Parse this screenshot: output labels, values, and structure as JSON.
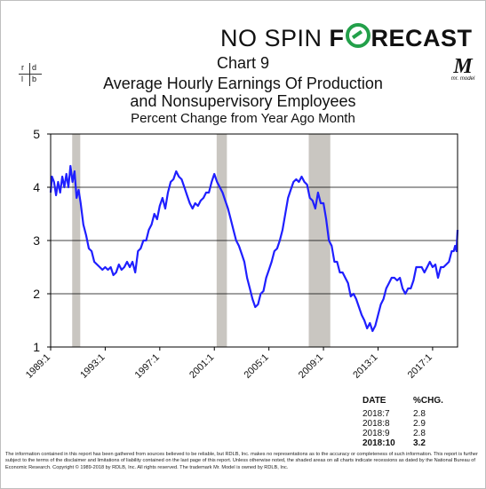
{
  "brand": {
    "light": "NO SPIN",
    "bold_pre": "F",
    "bold_post": "RECAST",
    "accent": "#23a04a"
  },
  "logos": {
    "rdlb": [
      "r",
      "d",
      "l",
      "b"
    ],
    "mr_model_mark": "M",
    "mr_model_text": "mr. model"
  },
  "chart_data": {
    "type": "line",
    "title_lines": [
      "Chart 9",
      "Average Hourly Earnings Of Production",
      "and Nonsupervisory Employees"
    ],
    "subtitle": "Percent Change from Year Ago Month",
    "xlabel": "",
    "ylabel": "",
    "x_range": [
      1989.0,
      2018.83
    ],
    "ylim": [
      1,
      5
    ],
    "yticks": [
      1,
      2,
      3,
      4,
      5
    ],
    "xticks": [
      {
        "x": 1989.0,
        "label": "1989:1"
      },
      {
        "x": 1993.0,
        "label": "1993:1"
      },
      {
        "x": 1997.0,
        "label": "1997:1"
      },
      {
        "x": 2001.0,
        "label": "2001:1"
      },
      {
        "x": 2005.0,
        "label": "2005:1"
      },
      {
        "x": 2009.0,
        "label": "2009:1"
      },
      {
        "x": 2013.0,
        "label": "2013:1"
      },
      {
        "x": 2017.0,
        "label": "2017:1"
      }
    ],
    "grid": "horizontal",
    "line_color": "#1f1fff",
    "recession_color": "#c9c6c1",
    "recessions": [
      [
        1990.58,
        1991.17
      ],
      [
        2001.17,
        2001.92
      ],
      [
        2007.92,
        2009.5
      ]
    ],
    "series": [
      {
        "values": [
          [
            1989.0,
            3.9
          ],
          [
            1989.1,
            4.2
          ],
          [
            1989.25,
            4.1
          ],
          [
            1989.4,
            3.85
          ],
          [
            1989.55,
            4.1
          ],
          [
            1989.7,
            3.9
          ],
          [
            1989.85,
            4.2
          ],
          [
            1990.0,
            4.0
          ],
          [
            1990.15,
            4.25
          ],
          [
            1990.3,
            4.0
          ],
          [
            1990.45,
            4.4
          ],
          [
            1990.6,
            4.1
          ],
          [
            1990.75,
            4.3
          ],
          [
            1990.9,
            3.8
          ],
          [
            1991.05,
            3.95
          ],
          [
            1991.2,
            3.7
          ],
          [
            1991.4,
            3.3
          ],
          [
            1991.6,
            3.1
          ],
          [
            1991.8,
            2.85
          ],
          [
            1992.0,
            2.8
          ],
          [
            1992.2,
            2.6
          ],
          [
            1992.4,
            2.55
          ],
          [
            1992.6,
            2.5
          ],
          [
            1992.8,
            2.45
          ],
          [
            1993.0,
            2.5
          ],
          [
            1993.2,
            2.45
          ],
          [
            1993.4,
            2.5
          ],
          [
            1993.6,
            2.35
          ],
          [
            1993.8,
            2.4
          ],
          [
            1994.0,
            2.55
          ],
          [
            1994.2,
            2.45
          ],
          [
            1994.4,
            2.5
          ],
          [
            1994.6,
            2.6
          ],
          [
            1994.8,
            2.5
          ],
          [
            1995.0,
            2.6
          ],
          [
            1995.2,
            2.4
          ],
          [
            1995.4,
            2.8
          ],
          [
            1995.6,
            2.85
          ],
          [
            1995.8,
            3.0
          ],
          [
            1996.0,
            3.0
          ],
          [
            1996.2,
            3.2
          ],
          [
            1996.4,
            3.3
          ],
          [
            1996.6,
            3.5
          ],
          [
            1996.8,
            3.4
          ],
          [
            1997.0,
            3.65
          ],
          [
            1997.2,
            3.8
          ],
          [
            1997.4,
            3.6
          ],
          [
            1997.6,
            3.9
          ],
          [
            1997.8,
            4.1
          ],
          [
            1998.0,
            4.15
          ],
          [
            1998.2,
            4.3
          ],
          [
            1998.4,
            4.2
          ],
          [
            1998.6,
            4.15
          ],
          [
            1998.8,
            4.0
          ],
          [
            1999.0,
            3.85
          ],
          [
            1999.2,
            3.7
          ],
          [
            1999.4,
            3.6
          ],
          [
            1999.6,
            3.7
          ],
          [
            1999.8,
            3.65
          ],
          [
            2000.0,
            3.75
          ],
          [
            2000.2,
            3.8
          ],
          [
            2000.4,
            3.9
          ],
          [
            2000.6,
            3.9
          ],
          [
            2000.8,
            4.1
          ],
          [
            2001.0,
            4.25
          ],
          [
            2001.2,
            4.1
          ],
          [
            2001.4,
            4.0
          ],
          [
            2001.6,
            3.9
          ],
          [
            2001.8,
            3.75
          ],
          [
            2002.0,
            3.6
          ],
          [
            2002.2,
            3.4
          ],
          [
            2002.4,
            3.2
          ],
          [
            2002.6,
            3.0
          ],
          [
            2002.8,
            2.9
          ],
          [
            2003.0,
            2.75
          ],
          [
            2003.2,
            2.6
          ],
          [
            2003.4,
            2.3
          ],
          [
            2003.6,
            2.1
          ],
          [
            2003.8,
            1.9
          ],
          [
            2004.0,
            1.75
          ],
          [
            2004.2,
            1.8
          ],
          [
            2004.4,
            2.0
          ],
          [
            2004.6,
            2.05
          ],
          [
            2004.8,
            2.3
          ],
          [
            2005.0,
            2.45
          ],
          [
            2005.2,
            2.6
          ],
          [
            2005.4,
            2.8
          ],
          [
            2005.6,
            2.85
          ],
          [
            2005.8,
            3.0
          ],
          [
            2006.0,
            3.2
          ],
          [
            2006.2,
            3.5
          ],
          [
            2006.4,
            3.8
          ],
          [
            2006.6,
            3.95
          ],
          [
            2006.8,
            4.1
          ],
          [
            2007.0,
            4.15
          ],
          [
            2007.2,
            4.1
          ],
          [
            2007.4,
            4.2
          ],
          [
            2007.6,
            4.1
          ],
          [
            2007.8,
            4.05
          ],
          [
            2008.0,
            3.8
          ],
          [
            2008.2,
            3.75
          ],
          [
            2008.4,
            3.6
          ],
          [
            2008.6,
            3.9
          ],
          [
            2008.8,
            3.7
          ],
          [
            2009.0,
            3.7
          ],
          [
            2009.2,
            3.4
          ],
          [
            2009.4,
            3.0
          ],
          [
            2009.6,
            2.9
          ],
          [
            2009.8,
            2.6
          ],
          [
            2010.0,
            2.6
          ],
          [
            2010.2,
            2.4
          ],
          [
            2010.4,
            2.4
          ],
          [
            2010.6,
            2.3
          ],
          [
            2010.8,
            2.2
          ],
          [
            2011.0,
            1.95
          ],
          [
            2011.2,
            2.0
          ],
          [
            2011.4,
            1.9
          ],
          [
            2011.6,
            1.75
          ],
          [
            2011.8,
            1.6
          ],
          [
            2012.0,
            1.5
          ],
          [
            2012.2,
            1.35
          ],
          [
            2012.4,
            1.45
          ],
          [
            2012.6,
            1.3
          ],
          [
            2012.8,
            1.4
          ],
          [
            2013.0,
            1.6
          ],
          [
            2013.2,
            1.8
          ],
          [
            2013.4,
            1.9
          ],
          [
            2013.6,
            2.1
          ],
          [
            2013.8,
            2.2
          ],
          [
            2014.0,
            2.3
          ],
          [
            2014.2,
            2.3
          ],
          [
            2014.4,
            2.25
          ],
          [
            2014.6,
            2.3
          ],
          [
            2014.8,
            2.1
          ],
          [
            2015.0,
            2.0
          ],
          [
            2015.2,
            2.1
          ],
          [
            2015.4,
            2.1
          ],
          [
            2015.6,
            2.25
          ],
          [
            2015.8,
            2.5
          ],
          [
            2016.0,
            2.5
          ],
          [
            2016.2,
            2.5
          ],
          [
            2016.4,
            2.4
          ],
          [
            2016.6,
            2.5
          ],
          [
            2016.8,
            2.6
          ],
          [
            2017.0,
            2.5
          ],
          [
            2017.2,
            2.55
          ],
          [
            2017.4,
            2.3
          ],
          [
            2017.6,
            2.5
          ],
          [
            2017.8,
            2.5
          ],
          [
            2018.0,
            2.55
          ],
          [
            2018.2,
            2.6
          ],
          [
            2018.4,
            2.8
          ],
          [
            2018.55,
            2.8
          ],
          [
            2018.65,
            2.9
          ],
          [
            2018.75,
            2.8
          ],
          [
            2018.83,
            3.2
          ]
        ]
      }
    ]
  },
  "table": {
    "headers": [
      "DATE",
      "%CHG."
    ],
    "rows": [
      [
        "2018:7",
        "2.8"
      ],
      [
        "2018:8",
        "2.9"
      ],
      [
        "2018:9",
        "2.8"
      ],
      [
        "2018:10",
        "3.2"
      ]
    ]
  },
  "disclaimer": "The information contained in this report has been gathered from sources believed to be reliable, but RDLB, Inc. makes no representations as to the accuracy or completeness of such information. This report is further subject to the terms of the disclaimer and limitations of liability contained on the last page of this report. Unless otherwise noted, the shaded areas on all charts indicate recessions as dated by the National Bureau of Economic Research. Copyright © 1989-2018 by RDLB, Inc. All rights reserved. The trademark Mr. Model is owned by RDLB, Inc."
}
